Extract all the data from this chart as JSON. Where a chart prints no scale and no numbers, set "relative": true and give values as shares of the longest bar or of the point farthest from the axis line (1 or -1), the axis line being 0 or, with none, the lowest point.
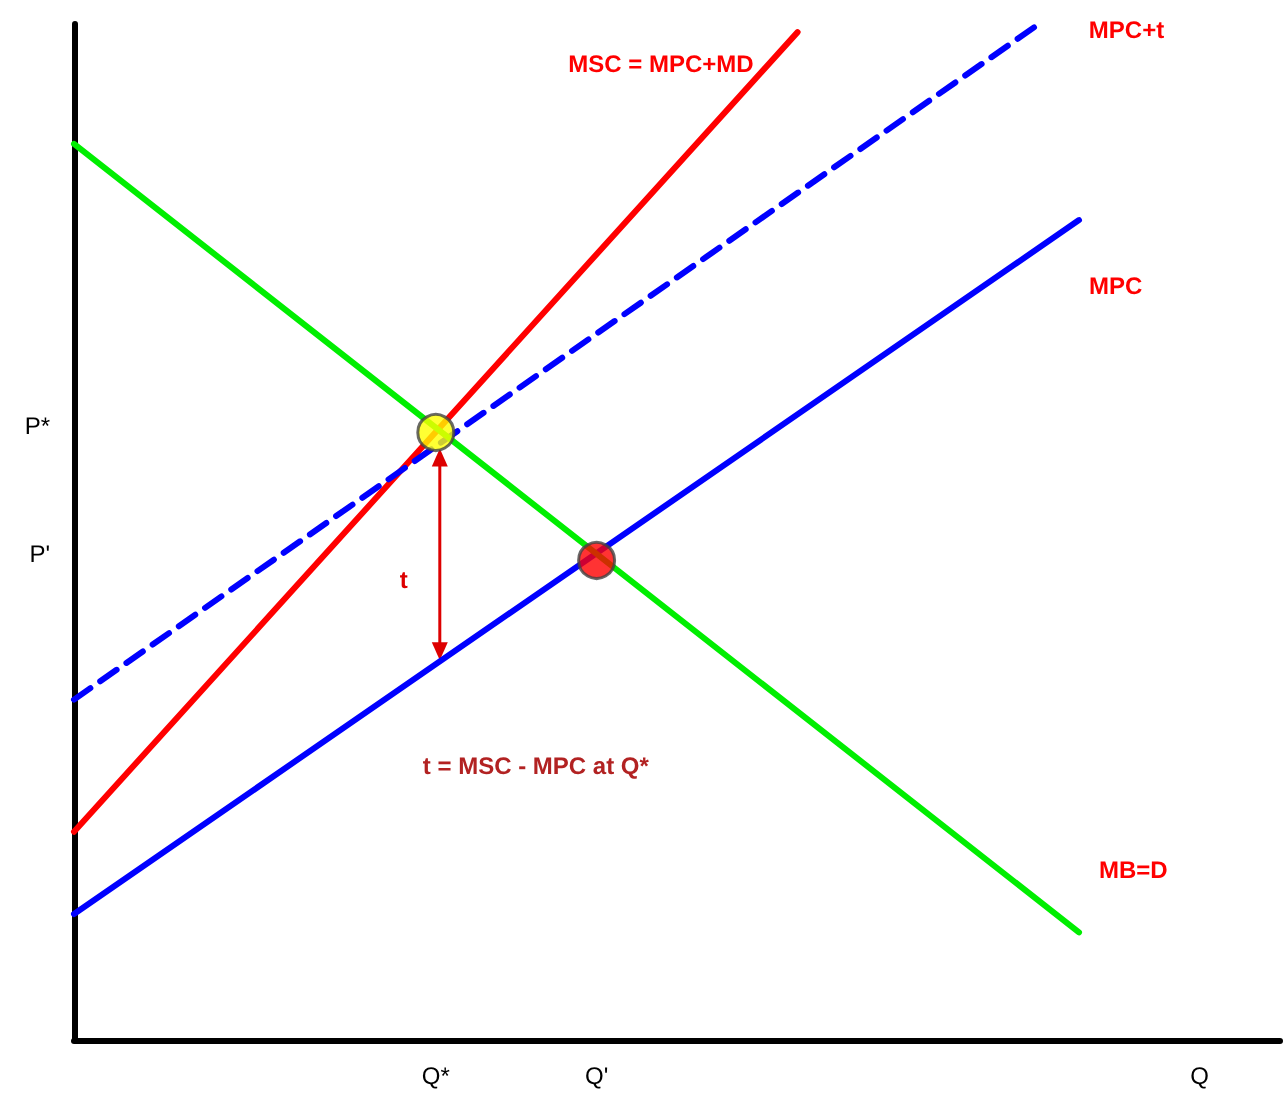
{
  "chart_data": {
    "type": "line",
    "relative": true,
    "marker": "none",
    "grid": false,
    "legend": false,
    "categories": [
      null,
      null,
      null,
      null,
      null,
      null,
      null,
      null,
      null,
      "Q*",
      null,
      null,
      null,
      "Q'",
      null,
      null,
      null,
      null,
      null,
      null,
      null,
      null,
      null,
      null,
      null,
      null,
      null,
      null,
      "Q",
      null,
      null
    ],
    "series": [
      {
        "name": "MSC = MPC+MD",
        "color": "#ff0000",
        "values": [
          0.205,
          null,
          null,
          null,
          null,
          null,
          null,
          null,
          null,
          null,
          null,
          null,
          null,
          null,
          null,
          null,
          null,
          null,
          0.992,
          null,
          null,
          null,
          null,
          null,
          null,
          null,
          null,
          null,
          null,
          null,
          null
        ]
      },
      {
        "name": "MPC+t",
        "color": "#0000ff",
        "line_style": "dashed",
        "values": [
          0.335,
          null,
          null,
          null,
          null,
          null,
          null,
          null,
          null,
          null,
          null,
          null,
          null,
          null,
          null,
          null,
          null,
          null,
          null,
          null,
          null,
          null,
          null,
          null,
          1,
          null,
          null,
          null,
          null,
          null,
          null
        ]
      },
      {
        "name": "MPC",
        "color": "#0000ff",
        "values": [
          0.124,
          null,
          null,
          null,
          null,
          null,
          null,
          null,
          null,
          null,
          null,
          null,
          null,
          null,
          null,
          null,
          null,
          null,
          null,
          null,
          null,
          null,
          null,
          null,
          null,
          0.807,
          null,
          null,
          null,
          null,
          null
        ]
      },
      {
        "name": "MB=D",
        "color": "#00ee00",
        "values": [
          0.882,
          null,
          null,
          null,
          null,
          null,
          null,
          null,
          null,
          null,
          null,
          null,
          null,
          null,
          null,
          null,
          null,
          null,
          null,
          null,
          null,
          null,
          null,
          null,
          null,
          0.106,
          null,
          null,
          null,
          null,
          null
        ]
      },
      {
        "type": "scatter",
        "marker": "circle",
        "colors": [
          "#ffff00",
          "#ff0000"
        ],
        "x": [
          "Q*",
          "Q'"
        ],
        "values": [
          0.598,
          0.472
        ]
      }
    ],
    "annotations": [
      "P*",
      "P'",
      "t",
      "t = MSC - MPC at Q*"
    ]
  }
}
